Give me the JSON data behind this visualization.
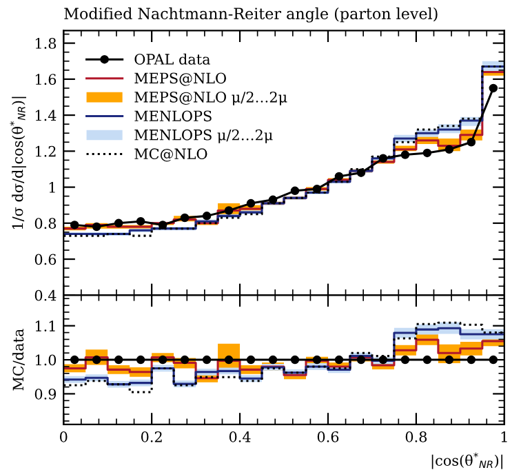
{
  "chart_data": [
    {
      "type": "step",
      "title": "Modified Nachtmann-Reiter angle (parton level)",
      "ylabel": "1/σ dσ/d|cos(θ$^{*}$$_{NR}$)|",
      "x": [
        0,
        0.05,
        0.1,
        0.15,
        0.2,
        0.25,
        0.3,
        0.35,
        0.4,
        0.45,
        0.5,
        0.55,
        0.6,
        0.65,
        0.7,
        0.75,
        0.8,
        0.85,
        0.9,
        0.95,
        1
      ],
      "xlim": [
        0,
        1
      ],
      "xticks": [
        0,
        0.2,
        0.4,
        0.6,
        0.8,
        1
      ],
      "ylim": [
        0.4,
        1.87
      ],
      "yticks": [
        0.4,
        0.6,
        0.8,
        {
          "value": 1,
          "label": "1"
        },
        1.2,
        1.4,
        1.6,
        1.8
      ],
      "tick_labels": "y",
      "legend": "top left",
      "grid": false,
      "series": [
        {
          "name": "MEPS@NLO μ/2…2μ",
          "type": "area",
          "color": "#ffa500",
          "values": [
            null,
            null,
            null,
            null,
            null,
            null,
            null,
            null,
            null,
            null,
            null,
            null,
            null,
            null,
            null,
            null,
            null,
            null,
            null,
            null,
            null
          ],
          "lower": [
            0.76,
            0.77,
            0.77,
            0.77,
            0.79,
            0.81,
            0.79,
            0.83,
            0.87,
            0.9,
            0.93,
            0.98,
            1.03,
            1.08,
            1.13,
            1.2,
            1.24,
            1.2,
            1.26,
            1.62,
            1.62
          ],
          "upper": [
            0.78,
            0.8,
            0.79,
            0.79,
            0.8,
            0.84,
            0.8,
            0.91,
            0.9,
            0.92,
            0.95,
            1.0,
            1.05,
            1.1,
            1.15,
            1.23,
            1.28,
            1.27,
            1.32,
            1.65,
            1.65
          ]
        },
        {
          "name": "MENLOPS μ/2…2μ",
          "type": "area",
          "color": "#c6dcf5",
          "values": [
            null,
            null,
            null,
            null,
            null,
            null,
            null,
            null,
            null,
            null,
            null,
            null,
            null,
            null,
            null,
            null,
            null,
            null,
            null,
            null,
            null
          ],
          "lower": [
            0.74,
            0.73,
            0.73,
            0.75,
            0.76,
            0.76,
            0.8,
            0.83,
            0.85,
            0.9,
            0.93,
            0.96,
            1.02,
            1.08,
            1.15,
            1.25,
            1.28,
            1.3,
            1.34,
            1.64,
            1.64
          ],
          "upper": [
            0.75,
            0.75,
            0.75,
            0.77,
            0.78,
            0.78,
            0.82,
            0.85,
            0.87,
            0.92,
            0.95,
            0.98,
            1.04,
            1.1,
            1.17,
            1.29,
            1.32,
            1.35,
            1.39,
            1.7,
            1.7
          ]
        },
        {
          "name": "OPAL data",
          "type": "line",
          "color": "#000000",
          "marker": "circle",
          "x": [
            0.025,
            0.075,
            0.125,
            0.175,
            0.225,
            0.275,
            0.325,
            0.375,
            0.425,
            0.475,
            0.525,
            0.575,
            0.625,
            0.675,
            0.725,
            0.775,
            0.825,
            0.875,
            0.925,
            0.975
          ],
          "values": [
            0.79,
            0.78,
            0.8,
            0.81,
            0.79,
            0.83,
            0.84,
            0.87,
            0.91,
            0.93,
            0.98,
            0.99,
            1.06,
            1.08,
            1.16,
            1.18,
            1.19,
            1.21,
            1.25,
            1.55
          ]
        },
        {
          "name": "MEPS@NLO",
          "color": "#b2182b",
          "values": [
            0.77,
            0.79,
            0.78,
            0.78,
            0.8,
            0.82,
            0.8,
            0.87,
            0.88,
            0.91,
            0.94,
            0.99,
            1.04,
            1.09,
            1.14,
            1.21,
            1.26,
            1.23,
            1.29,
            1.64,
            1.64
          ]
        },
        {
          "name": "MENLOPS",
          "color": "#1f2a80",
          "values": [
            0.74,
            0.74,
            0.74,
            0.76,
            0.77,
            0.77,
            0.81,
            0.84,
            0.86,
            0.91,
            0.94,
            0.97,
            1.03,
            1.09,
            1.16,
            1.27,
            1.3,
            1.32,
            1.37,
            1.67,
            1.67
          ]
        },
        {
          "name": "MC@NLO",
          "color": "#000000",
          "line_style": "dotted",
          "values": [
            0.73,
            0.73,
            0.74,
            0.73,
            0.77,
            0.77,
            0.8,
            0.83,
            0.85,
            0.91,
            0.94,
            0.97,
            1.03,
            1.1,
            1.17,
            1.25,
            1.32,
            1.34,
            1.38,
            1.67,
            1.67
          ]
        }
      ]
    },
    {
      "type": "step",
      "xlabel": "|cos(θ$^{*}$$_{NR}$)|",
      "ylabel": "MC/data",
      "x": [
        0,
        0.05,
        0.1,
        0.15,
        0.2,
        0.25,
        0.3,
        0.35,
        0.4,
        0.45,
        0.5,
        0.55,
        0.6,
        0.65,
        0.7,
        0.75,
        0.8,
        0.85,
        0.9,
        0.95,
        1
      ],
      "xlim": [
        0,
        1
      ],
      "xticks": [
        0,
        0.2,
        0.4,
        0.6,
        0.8,
        {
          "value": 1,
          "label": "1"
        }
      ],
      "ylim": [
        0.81,
        1.19
      ],
      "yticks": [
        0.9,
        {
          "value": 1,
          "label": "1.0"
        },
        1.1
      ],
      "legend": false,
      "grid": false,
      "series": [
        {
          "type": "area",
          "color": "#ffa500",
          "values": [
            null,
            null,
            null,
            null,
            null,
            null,
            null,
            null,
            null,
            null,
            null,
            null,
            null,
            null,
            null,
            null,
            null,
            null,
            null,
            null,
            null
          ],
          "lower": [
            0.963,
            0.985,
            0.958,
            0.95,
            0.993,
            0.975,
            0.934,
            0.962,
            0.958,
            0.968,
            0.943,
            0.985,
            0.968,
            0.995,
            0.972,
            1.013,
            1.043,
            0.99,
            1.013,
            1.04,
            1.04
          ],
          "upper": [
            0.987,
            1.03,
            0.984,
            0.978,
            1.02,
            1.005,
            0.958,
            1.047,
            0.984,
            0.992,
            0.967,
            1.009,
            0.992,
            1.019,
            0.996,
            1.043,
            1.075,
            1.045,
            1.053,
            1.07,
            1.07
          ]
        },
        {
          "type": "area",
          "color": "#c6dcf5",
          "values": [
            null,
            null,
            null,
            null,
            null,
            null,
            null,
            null,
            null,
            null,
            null,
            null,
            null,
            null,
            null,
            null,
            null,
            null,
            null,
            null,
            null
          ],
          "lower": [
            0.932,
            0.937,
            0.918,
            0.922,
            0.965,
            0.919,
            0.954,
            0.957,
            0.935,
            0.968,
            0.952,
            0.97,
            0.961,
            1.001,
            0.987,
            1.064,
            1.074,
            1.076,
            1.06,
            1.06,
            1.06
          ],
          "upper": [
            0.952,
            0.957,
            0.938,
            0.942,
            0.985,
            0.939,
            0.974,
            0.977,
            0.955,
            0.988,
            0.972,
            0.99,
            0.981,
            1.021,
            1.007,
            1.094,
            1.104,
            1.11,
            1.09,
            1.09,
            1.09
          ]
        },
        {
          "type": "line",
          "color": "#000000",
          "marker": "circle",
          "x": [
            0.025,
            0.075,
            0.125,
            0.175,
            0.225,
            0.275,
            0.325,
            0.375,
            0.425,
            0.475,
            0.525,
            0.575,
            0.625,
            0.675,
            0.725,
            0.775,
            0.825,
            0.875,
            0.925,
            0.975
          ],
          "values": [
            1,
            1,
            1,
            1,
            1,
            1,
            1,
            1,
            1,
            1,
            1,
            1,
            1,
            1,
            1,
            1,
            1,
            1,
            1,
            1
          ]
        },
        {
          "color": "#b2182b",
          "values": [
            0.975,
            1.007,
            0.971,
            0.964,
            1.007,
            0.991,
            0.946,
            0.997,
            0.971,
            0.98,
            0.955,
            0.997,
            0.98,
            1.007,
            0.984,
            1.028,
            1.059,
            1.02,
            1.033,
            1.055,
            1.055
          ]
        },
        {
          "color": "#1f2a80",
          "values": [
            0.942,
            0.947,
            0.928,
            0.932,
            0.975,
            0.929,
            0.964,
            0.967,
            0.945,
            0.978,
            0.962,
            0.98,
            0.971,
            1.011,
            0.997,
            1.079,
            1.089,
            1.093,
            1.075,
            1.075,
            1.075
          ]
        },
        {
          "color": "#000000",
          "line_style": "dotted",
          "values": [
            0.925,
            0.938,
            0.928,
            0.905,
            0.975,
            0.925,
            0.949,
            0.949,
            0.938,
            0.975,
            0.962,
            0.98,
            0.975,
            1.02,
            1.011,
            1.063,
            1.105,
            1.109,
            1.103,
            1.08,
            1.08
          ]
        }
      ]
    }
  ]
}
